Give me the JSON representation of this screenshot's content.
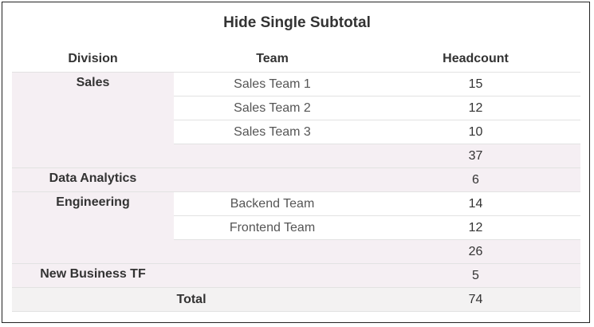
{
  "title": "Hide Single Subtotal",
  "columns": [
    "Division",
    "Team",
    "Headcount"
  ],
  "divisions": [
    {
      "name": "Sales",
      "teams": [
        {
          "team": "Sales Team 1",
          "headcount": "15"
        },
        {
          "team": "Sales Team 2",
          "headcount": "12"
        },
        {
          "team": "Sales Team 3",
          "headcount": "10"
        }
      ],
      "subtotal": "37"
    },
    {
      "name": "Data Analytics",
      "headcount": "6"
    },
    {
      "name": "Engineering",
      "teams": [
        {
          "team": "Backend Team",
          "headcount": "14"
        },
        {
          "team": "Frontend Team",
          "headcount": "12"
        }
      ],
      "subtotal": "26"
    },
    {
      "name": "New Business TF",
      "headcount": "5"
    }
  ],
  "total": {
    "label": "Total",
    "headcount": "74"
  },
  "colors": {
    "division_bg": "#f5eff3",
    "total_bg": "#f3f2f2"
  }
}
